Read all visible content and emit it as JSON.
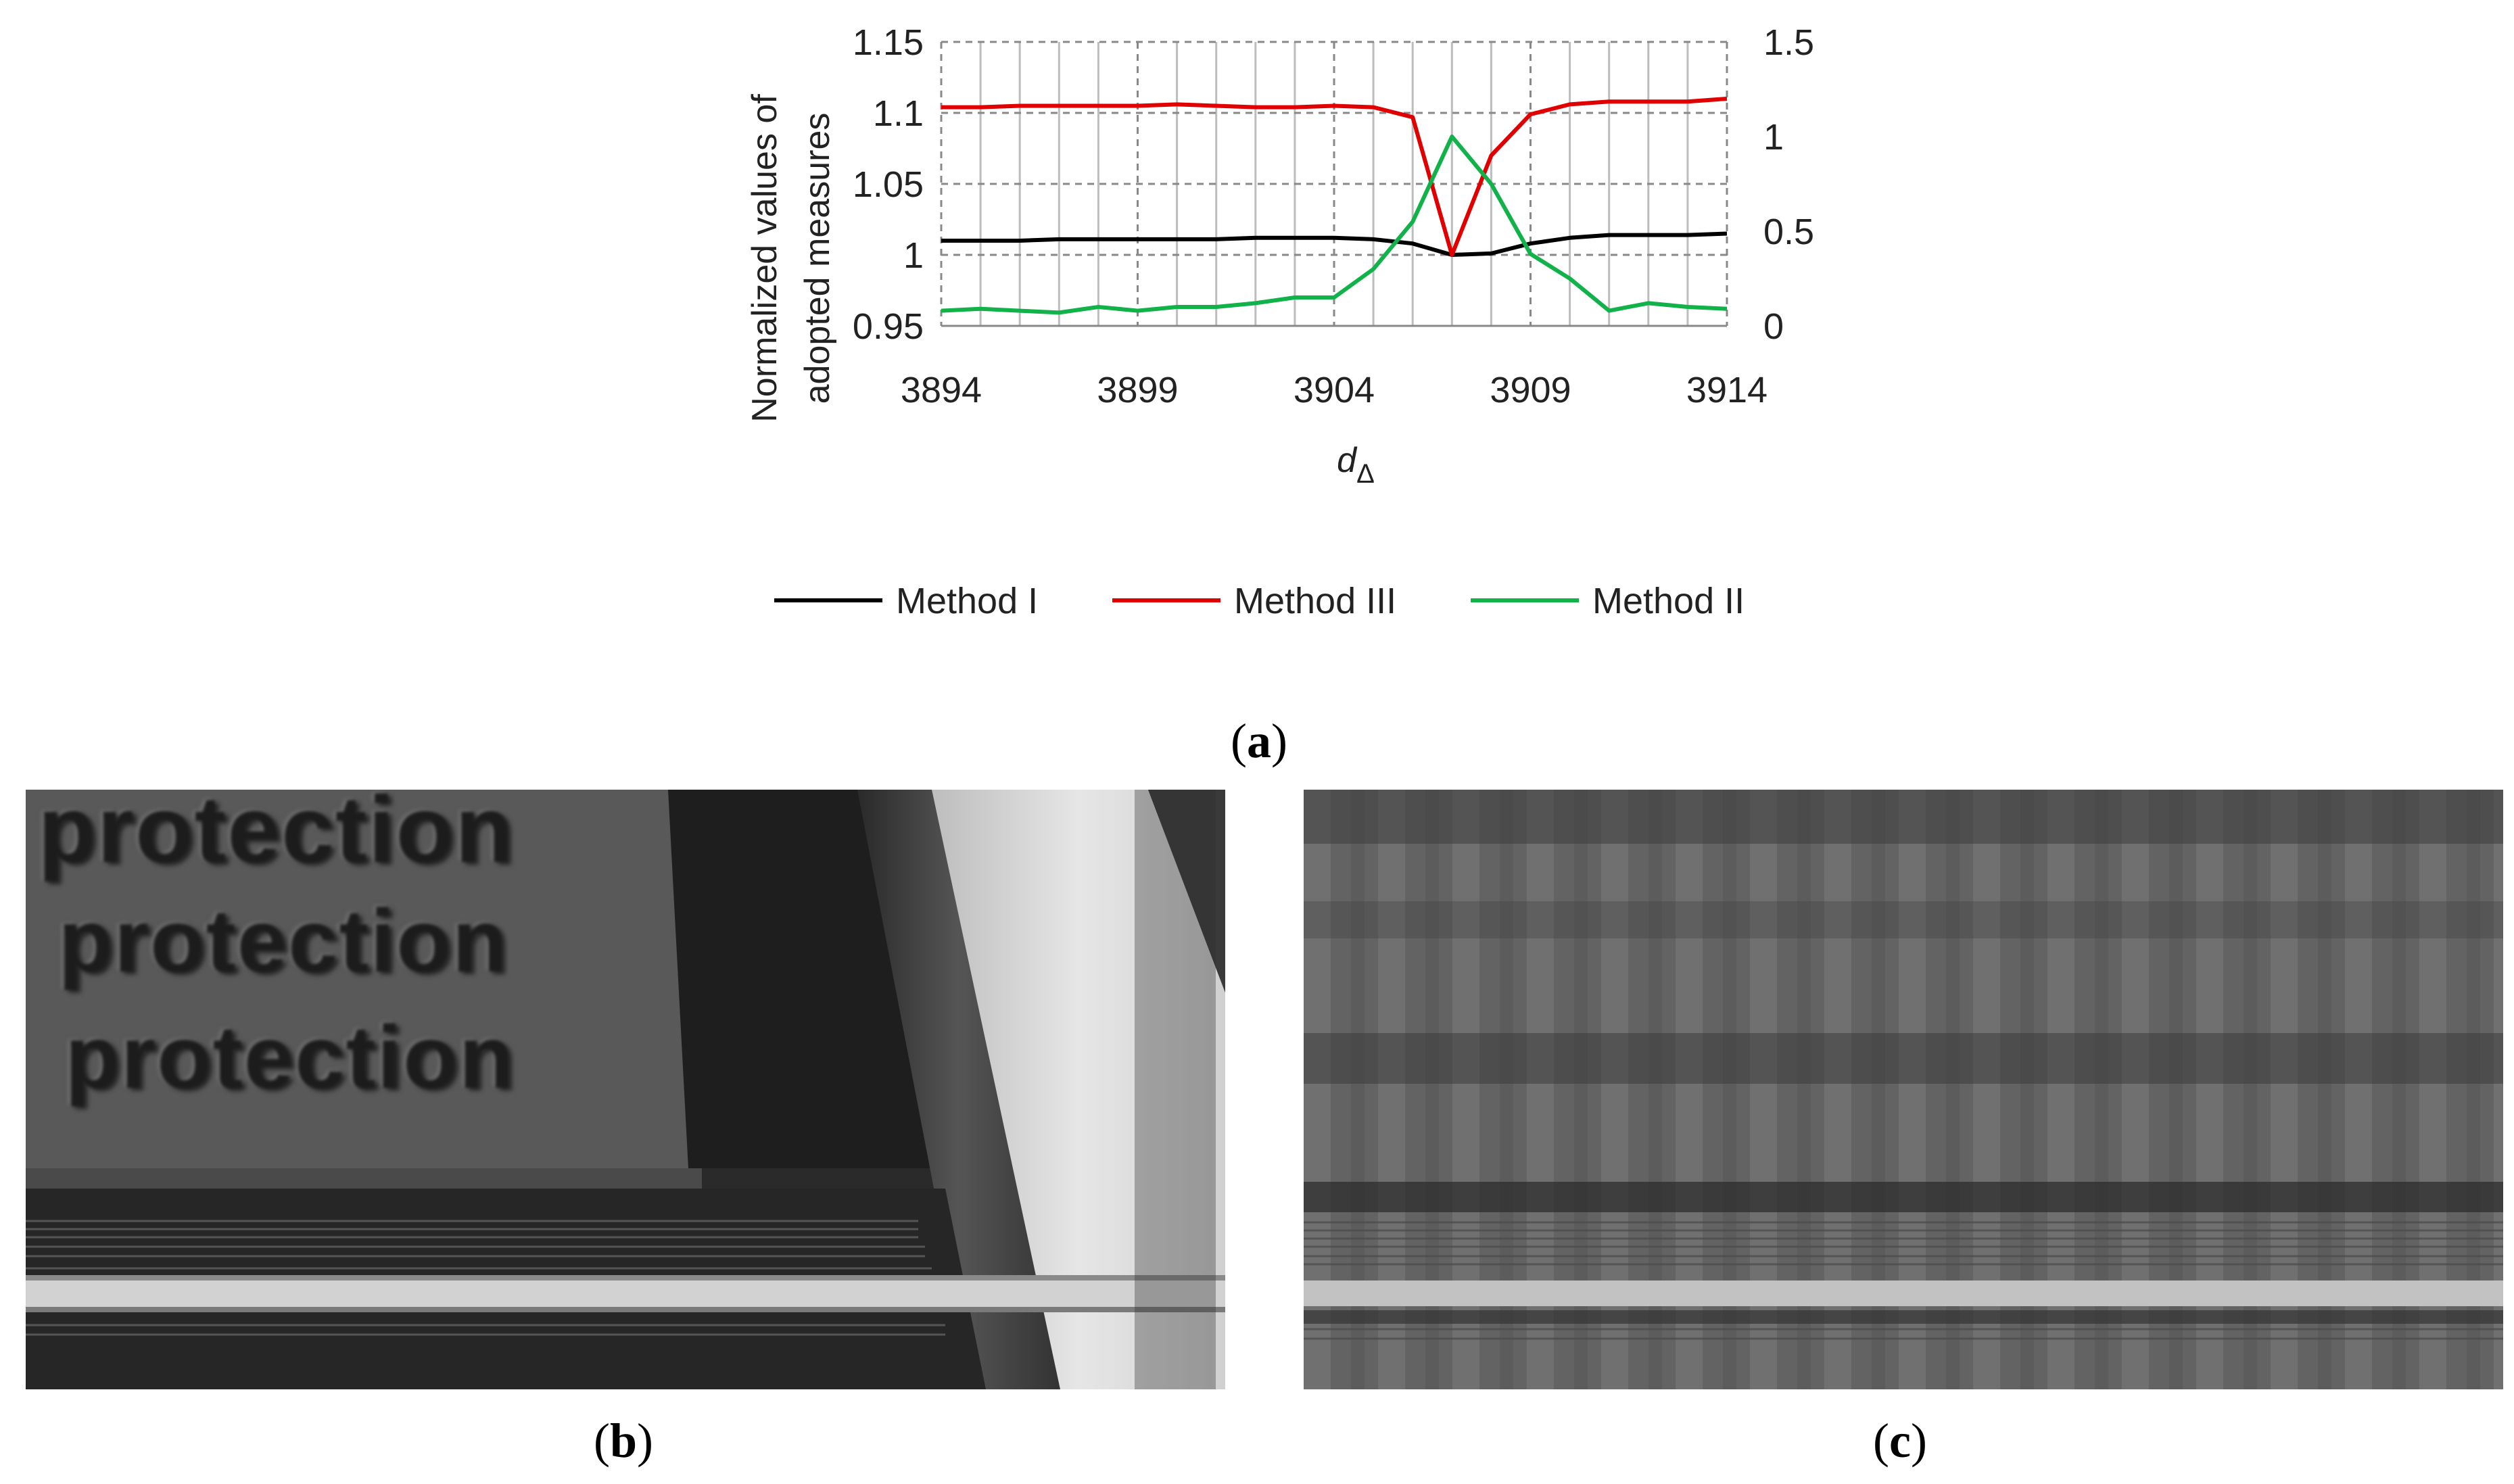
{
  "chart_data": {
    "type": "line",
    "title": "",
    "xlabel": "d",
    "xlabel_subscript": "Δ",
    "ylabel_line1": "Normalized values of",
    "ylabel_line2": "adopted measures",
    "xlim": [
      3894,
      3914
    ],
    "x_ticks": [
      "3894",
      "3899",
      "3904",
      "3909",
      "3914"
    ],
    "ylim_left": [
      0.95,
      1.15
    ],
    "y_ticks_left": [
      "0.95",
      "1",
      "1.05",
      "1.1",
      "1.15"
    ],
    "ylim_right": [
      0,
      1.5
    ],
    "y_ticks_right": [
      "0",
      "0.5",
      "1",
      "1.5"
    ],
    "grid": true,
    "legend_position": "bottom",
    "x": [
      3894,
      3895,
      3896,
      3897,
      3898,
      3899,
      3900,
      3901,
      3902,
      3903,
      3904,
      3905,
      3906,
      3907,
      3908,
      3909,
      3910,
      3911,
      3912,
      3913,
      3914
    ],
    "series": [
      {
        "name": "Method I",
        "axis": "left",
        "color": "#000000",
        "values": [
          1.01,
          1.01,
          1.01,
          1.011,
          1.011,
          1.011,
          1.011,
          1.011,
          1.012,
          1.012,
          1.012,
          1.011,
          1.008,
          1.0,
          1.001,
          1.008,
          1.012,
          1.014,
          1.014,
          1.014,
          1.015
        ]
      },
      {
        "name": "Method III",
        "axis": "left",
        "color": "#e00000",
        "values": [
          1.104,
          1.104,
          1.105,
          1.105,
          1.105,
          1.105,
          1.106,
          1.105,
          1.104,
          1.104,
          1.105,
          1.104,
          1.097,
          1.0,
          1.07,
          1.099,
          1.106,
          1.108,
          1.108,
          1.108,
          1.11
        ]
      },
      {
        "name": "Method II",
        "axis": "right",
        "color": "#11b24a",
        "values": [
          0.08,
          0.09,
          0.08,
          0.07,
          0.1,
          0.08,
          0.1,
          0.1,
          0.12,
          0.15,
          0.15,
          0.3,
          0.55,
          1.0,
          0.75,
          0.38,
          0.25,
          0.08,
          0.12,
          0.1,
          0.09
        ]
      }
    ]
  },
  "captions": {
    "a": "a",
    "b": "b",
    "c": "c"
  },
  "panel_b": {
    "words": [
      "protection",
      "protection",
      "protection"
    ]
  }
}
